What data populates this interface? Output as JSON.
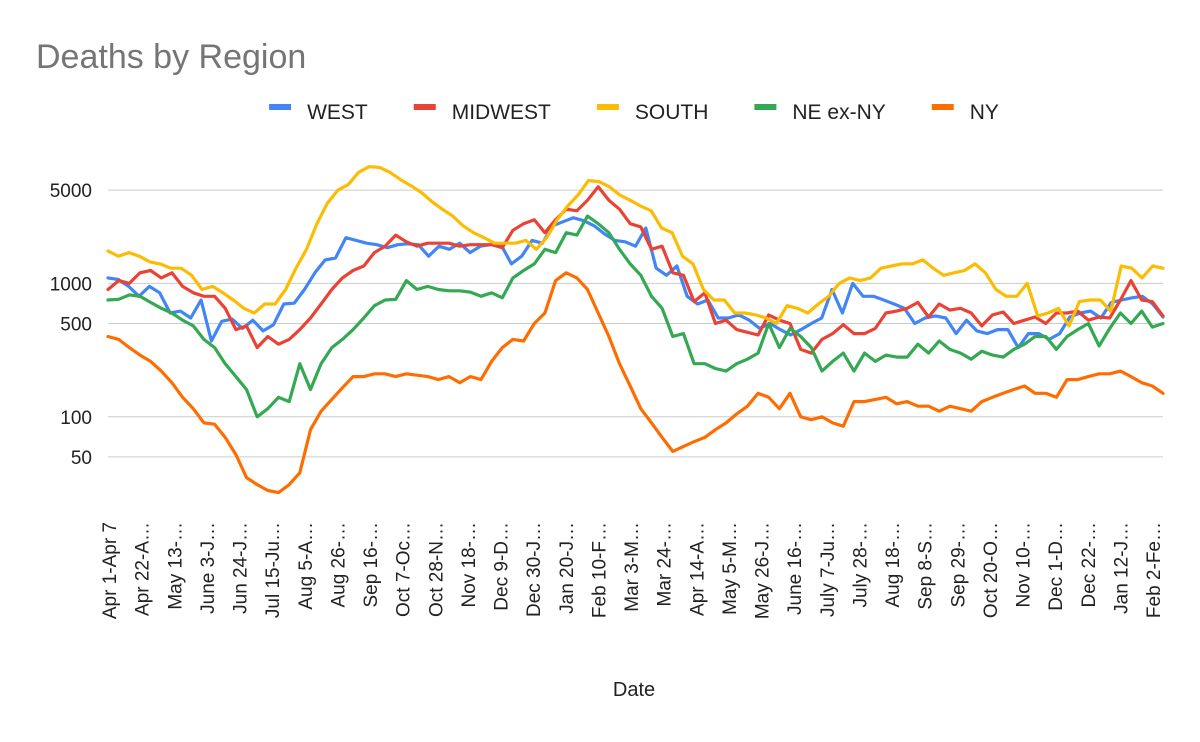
{
  "chart_data": {
    "type": "line",
    "title": "Deaths by Region",
    "xlabel": "Date",
    "ylabel": "",
    "y_scale": "log",
    "ylim": [
      20,
      10000
    ],
    "y_ticks": [
      {
        "value": 50,
        "label": "50"
      },
      {
        "value": 100,
        "label": "100"
      },
      {
        "value": 500,
        "label": "500"
      },
      {
        "value": 1000,
        "label": "1000"
      },
      {
        "value": 5000,
        "label": "5000"
      }
    ],
    "legend_position": "top",
    "x_tick_labels": [
      "Apr 1-Apr 7",
      "Apr 22-A…",
      "May 13-…",
      "June 3-J…",
      "Jun 24-J…",
      "Jul 15-Ju…",
      "Aug 5-A…",
      "Aug 26-…",
      "Sep 16-…",
      "Oct 7-Oc…",
      "Oct 28-N…",
      "Nov 18-…",
      "Dec 9-D…",
      "Dec 30-J…",
      "Jan 20-J…",
      "Feb 10-F…",
      "Mar 3-M…",
      "Mar 24-…",
      "Apr 14-A…",
      "May 5-M…",
      "May 26-J…",
      "June 16-…",
      "July 7-Ju…",
      "July 28-…",
      "Aug 18-…",
      "Sep 8-S…",
      "Sep 29-…",
      "Oct 20-O…",
      "Nov 10-…",
      "Dec 1-D…",
      "Dec 22-…",
      "Jan 12-J…",
      "Feb 2-Fe…"
    ],
    "series": [
      {
        "name": "WEST",
        "color": "#4285f4",
        "values": [
          1100,
          1070,
          950,
          800,
          950,
          850,
          600,
          620,
          550,
          750,
          370,
          520,
          540,
          460,
          530,
          440,
          490,
          700,
          710,
          900,
          1200,
          1500,
          1550,
          2200,
          2100,
          2000,
          1950,
          1850,
          1950,
          1980,
          1950,
          1600,
          1900,
          1800,
          2000,
          1700,
          1900,
          1950,
          1950,
          1400,
          1600,
          2100,
          2000,
          2700,
          2900,
          3100,
          2950,
          2700,
          2350,
          2100,
          2050,
          1900,
          2600,
          1300,
          1150,
          1350,
          800,
          700,
          750,
          550,
          550,
          580,
          530,
          460,
          500,
          450,
          410,
          450,
          500,
          550,
          900,
          600,
          1000,
          800,
          800,
          750,
          700,
          650,
          500,
          550,
          570,
          550,
          420,
          530,
          440,
          420,
          450,
          450,
          330,
          420,
          420,
          380,
          420,
          560,
          600,
          620,
          550,
          720,
          750,
          780,
          800,
          700,
          560
        ]
      },
      {
        "name": "MIDWEST",
        "color": "#ea4335",
        "values": [
          900,
          1050,
          1000,
          1200,
          1250,
          1100,
          1200,
          950,
          850,
          800,
          800,
          650,
          450,
          480,
          330,
          400,
          350,
          380,
          450,
          550,
          700,
          900,
          1100,
          1250,
          1350,
          1700,
          1900,
          2300,
          2050,
          1900,
          2000,
          2000,
          2000,
          1900,
          1950,
          1950,
          1950,
          1850,
          2500,
          2800,
          3000,
          2400,
          3000,
          3600,
          3500,
          4200,
          5300,
          4200,
          3600,
          2800,
          2650,
          1800,
          1900,
          1200,
          1150,
          730,
          850,
          500,
          530,
          450,
          430,
          410,
          580,
          530,
          500,
          320,
          300,
          380,
          420,
          490,
          420,
          420,
          460,
          600,
          620,
          650,
          720,
          560,
          700,
          630,
          650,
          600,
          480,
          580,
          610,
          500,
          530,
          560,
          500,
          600,
          600,
          620,
          530,
          560,
          550,
          750,
          1050,
          750,
          730,
          570
        ]
      },
      {
        "name": "SOUTH",
        "color": "#fbbc04",
        "values": [
          1750,
          1600,
          1700,
          1600,
          1450,
          1400,
          1300,
          1300,
          1150,
          900,
          950,
          850,
          750,
          650,
          600,
          700,
          700,
          900,
          1300,
          1800,
          2800,
          4000,
          5000,
          5500,
          6800,
          7500,
          7400,
          6800,
          6000,
          5400,
          4800,
          4100,
          3600,
          3200,
          2700,
          2400,
          2200,
          2000,
          2000,
          2000,
          2100,
          1800,
          2200,
          3000,
          3800,
          4600,
          5900,
          5800,
          5300,
          4600,
          4200,
          3800,
          3500,
          2600,
          2400,
          1600,
          1400,
          900,
          750,
          750,
          600,
          600,
          580,
          550,
          500,
          680,
          650,
          600,
          700,
          800,
          1000,
          1100,
          1050,
          1100,
          1300,
          1350,
          1400,
          1400,
          1500,
          1300,
          1150,
          1200,
          1250,
          1400,
          1200,
          900,
          800,
          800,
          1000,
          570,
          600,
          650,
          480,
          730,
          750,
          750,
          620,
          1350,
          1300,
          1100,
          1350,
          1300
        ]
      },
      {
        "name": "NE ex-NY",
        "color": "#34a853",
        "values": [
          750,
          760,
          820,
          800,
          720,
          650,
          600,
          530,
          480,
          380,
          330,
          250,
          200,
          160,
          100,
          115,
          140,
          130,
          250,
          160,
          250,
          330,
          380,
          450,
          550,
          680,
          750,
          760,
          1050,
          900,
          950,
          900,
          880,
          880,
          860,
          800,
          850,
          780,
          1100,
          1250,
          1400,
          1800,
          1700,
          2400,
          2300,
          3200,
          2800,
          2400,
          1800,
          1400,
          1150,
          800,
          650,
          400,
          420,
          250,
          250,
          230,
          220,
          250,
          270,
          300,
          500,
          330,
          460,
          400,
          330,
          220,
          260,
          300,
          220,
          300,
          260,
          290,
          280,
          280,
          350,
          300,
          370,
          320,
          300,
          270,
          310,
          290,
          280,
          320,
          350,
          400,
          400,
          320,
          400,
          450,
          500,
          340,
          460,
          600,
          500,
          620,
          470,
          500
        ]
      },
      {
        "name": "NY",
        "color": "#ff6d01",
        "values": [
          400,
          380,
          330,
          290,
          260,
          220,
          180,
          140,
          115,
          90,
          88,
          70,
          52,
          35,
          31,
          28,
          27,
          31,
          38,
          80,
          110,
          135,
          165,
          200,
          200,
          210,
          210,
          200,
          210,
          205,
          200,
          190,
          200,
          180,
          200,
          190,
          260,
          330,
          380,
          370,
          500,
          600,
          1050,
          1200,
          1100,
          900,
          600,
          400,
          250,
          170,
          115,
          90,
          70,
          55,
          60,
          65,
          70,
          80,
          90,
          105,
          120,
          150,
          140,
          115,
          150,
          100,
          95,
          100,
          90,
          85,
          130,
          130,
          135,
          140,
          125,
          130,
          120,
          120,
          110,
          120,
          115,
          110,
          130,
          140,
          150,
          160,
          170,
          150,
          150,
          140,
          190,
          190,
          200,
          210,
          210,
          220,
          200,
          180,
          170,
          150
        ]
      }
    ]
  }
}
